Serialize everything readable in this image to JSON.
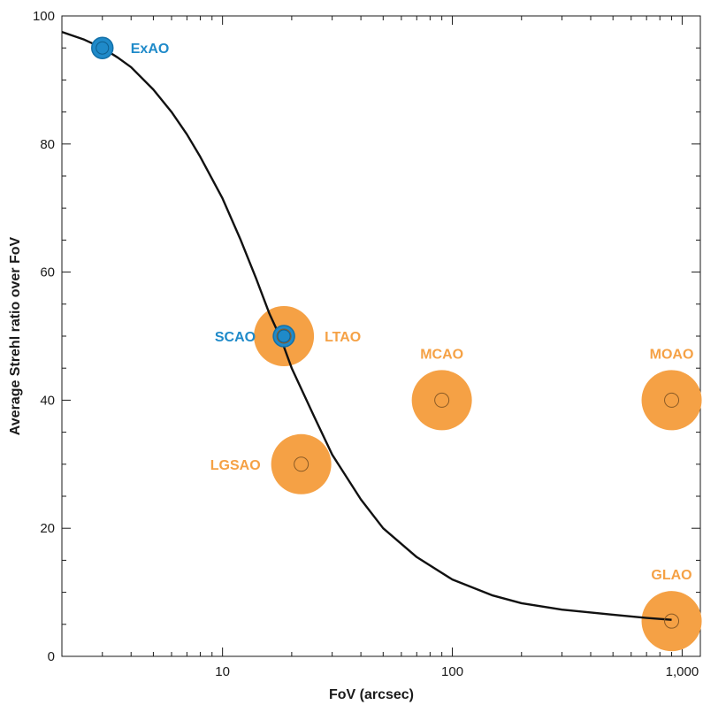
{
  "chart_data": {
    "type": "scatter",
    "title": "",
    "xlabel": "FoV (arcsec)",
    "ylabel": "Average Strehl ratio over FoV",
    "x_scale": "log",
    "xlim": [
      2,
      1200
    ],
    "ylim": [
      0,
      100
    ],
    "x_ticks": [
      {
        "value": 10,
        "label": "10"
      },
      {
        "value": 100,
        "label": "100"
      },
      {
        "value": 1000,
        "label": "1,000"
      }
    ],
    "y_ticks": [
      {
        "value": 0,
        "label": "0"
      },
      {
        "value": 20,
        "label": "20"
      },
      {
        "value": 40,
        "label": "40"
      },
      {
        "value": 60,
        "label": "60"
      },
      {
        "value": 80,
        "label": "80"
      },
      {
        "value": 100,
        "label": "100"
      }
    ],
    "grid": false,
    "colors": {
      "blue": "#1f8ac9",
      "orange": "#f5a145",
      "curve": "#111111"
    },
    "curve": {
      "x": [
        2,
        2.5,
        3,
        3.5,
        4,
        5,
        6,
        7,
        8,
        10,
        12,
        14,
        16,
        18,
        20,
        25,
        30,
        40,
        50,
        70,
        100,
        150,
        200,
        300,
        500,
        700,
        900
      ],
      "y": [
        97.5,
        96.3,
        95,
        93.5,
        92,
        88.5,
        85,
        81.5,
        78,
        71.5,
        65,
        59,
        53.5,
        49.5,
        45,
        37.5,
        31.5,
        24.5,
        20,
        15.5,
        12,
        9.5,
        8.3,
        7.3,
        6.5,
        6,
        5.7
      ]
    },
    "points": [
      {
        "label": "ExAO",
        "x": 3,
        "y": 95,
        "color": "blue",
        "halo": 0,
        "label_side": "right"
      },
      {
        "label": "SCAO",
        "x": 18.5,
        "y": 50,
        "color": "blue",
        "halo": 0,
        "label_side": "left"
      },
      {
        "label": "LTAO",
        "x": 18.5,
        "y": 50,
        "color": "orange",
        "halo": 1,
        "label_side": "right"
      },
      {
        "label": "LGSAO",
        "x": 22,
        "y": 30,
        "color": "orange",
        "halo": 1,
        "label_side": "left"
      },
      {
        "label": "MCAO",
        "x": 90,
        "y": 40,
        "color": "orange",
        "halo": 1,
        "label_side": "above"
      },
      {
        "label": "MOAO",
        "x": 900,
        "y": 40,
        "color": "orange",
        "halo": 1,
        "label_side": "above"
      },
      {
        "label": "GLAO",
        "x": 900,
        "y": 5.5,
        "color": "orange",
        "halo": 1,
        "label_side": "above"
      }
    ]
  }
}
